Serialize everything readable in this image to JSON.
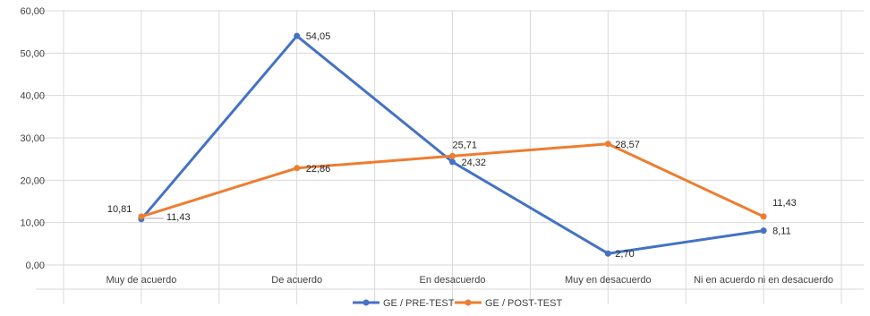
{
  "chart_data": {
    "type": "line",
    "title": "",
    "xlabel": "",
    "ylabel": "",
    "categories": [
      "Muy de acuerdo",
      "De acuerdo",
      "En desacuerdo",
      "Muy en desacuerdo",
      "Ni en acuerdo ni en desacuerdo"
    ],
    "y_ticks": [
      "0,00",
      "10,00",
      "20,00",
      "30,00",
      "40,00",
      "50,00",
      "60,00"
    ],
    "ylim": [
      0,
      60
    ],
    "grid": true,
    "legend_position": "bottom",
    "series": [
      {
        "name": "GE / PRE-TEST",
        "color": "#4472C4",
        "values": [
          10.81,
          54.05,
          24.32,
          2.7,
          8.11
        ],
        "labels": [
          "10,81",
          "54,05",
          "24,32",
          "2,70",
          "8,11"
        ]
      },
      {
        "name": "GE / POST-TEST",
        "color": "#ED7D31",
        "values": [
          11.43,
          22.86,
          25.71,
          28.57,
          11.43
        ],
        "labels": [
          "11,43",
          "22,86",
          "25,71",
          "28,57",
          "11,43"
        ]
      }
    ]
  }
}
